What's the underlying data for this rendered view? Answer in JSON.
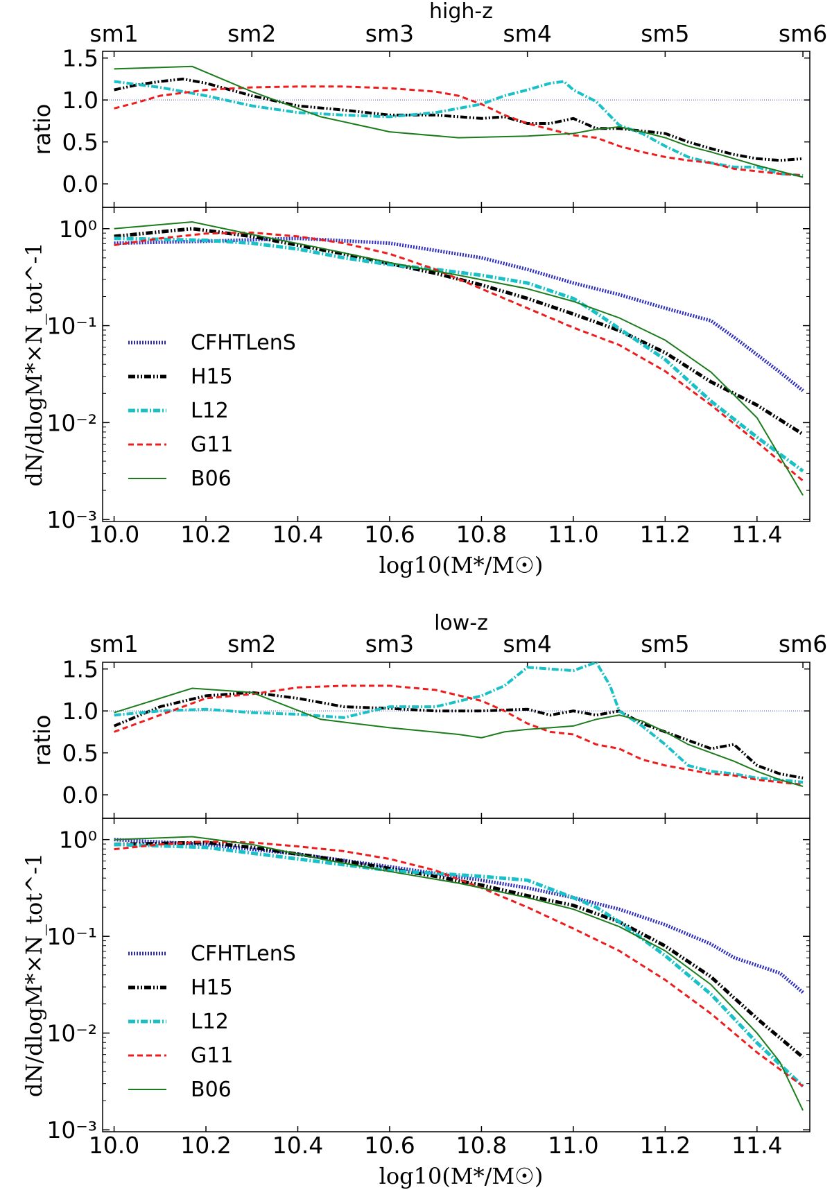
{
  "figure": {
    "title_axis_x": "log10(M*/M☉)",
    "colors": {
      "CFHTLenS": "#2b2bbd",
      "H15": "#000000",
      "L12": "#19c0c8",
      "G11": "#ee1c1c",
      "B06": "#1c7c1c",
      "ref": "#3b4bd0"
    },
    "legend_order": [
      "CFHTLenS",
      "H15",
      "L12",
      "G11",
      "B06"
    ]
  },
  "chart_data": [
    {
      "panel": "high-z",
      "title": "high-z",
      "top_axis": {
        "ticks": [
          "sm1",
          "sm2",
          "sm3",
          "sm4",
          "sm5",
          "sm6"
        ],
        "positions": [
          10.0,
          10.3,
          10.6,
          10.9,
          11.2,
          11.5
        ]
      },
      "ratio": {
        "type": "line",
        "ylabel": "ratio",
        "ylim": [
          -0.28,
          1.58
        ],
        "yticks": [
          0.0,
          0.5,
          1.0,
          1.5
        ],
        "yticklabels": [
          "0.0",
          "0.5",
          "1.0",
          "1.5"
        ],
        "reference_line": 1.0,
        "series": [
          {
            "name": "H15",
            "x": [
              10.0,
              10.05,
              10.1,
              10.15,
              10.2,
              10.3,
              10.4,
              10.5,
              10.6,
              10.7,
              10.8,
              10.85,
              10.9,
              10.95,
              11.0,
              11.05,
              11.1,
              11.15,
              11.2,
              11.25,
              11.3,
              11.35,
              11.4,
              11.45,
              11.5
            ],
            "y": [
              1.12,
              1.18,
              1.22,
              1.25,
              1.2,
              1.05,
              0.93,
              0.88,
              0.82,
              0.82,
              0.78,
              0.8,
              0.72,
              0.72,
              0.78,
              0.66,
              0.66,
              0.63,
              0.6,
              0.5,
              0.42,
              0.35,
              0.3,
              0.28,
              0.3
            ]
          },
          {
            "name": "L12",
            "x": [
              10.0,
              10.1,
              10.2,
              10.3,
              10.4,
              10.5,
              10.6,
              10.7,
              10.8,
              10.85,
              10.9,
              10.95,
              10.98,
              11.0,
              11.05,
              11.1,
              11.15,
              11.2,
              11.25,
              11.3,
              11.35,
              11.4,
              11.45,
              11.5
            ],
            "y": [
              1.22,
              1.15,
              1.05,
              0.93,
              0.85,
              0.82,
              0.8,
              0.85,
              0.95,
              1.05,
              1.12,
              1.2,
              1.22,
              1.12,
              0.98,
              0.7,
              0.6,
              0.45,
              0.32,
              0.25,
              0.2,
              0.2,
              0.12,
              0.1
            ]
          },
          {
            "name": "G11",
            "x": [
              10.0,
              10.05,
              10.1,
              10.2,
              10.3,
              10.4,
              10.5,
              10.6,
              10.7,
              10.75,
              10.8,
              10.85,
              10.9,
              10.95,
              11.0,
              11.05,
              11.1,
              11.15,
              11.2,
              11.25,
              11.3,
              11.35,
              11.4,
              11.45,
              11.5
            ],
            "y": [
              0.9,
              0.97,
              1.05,
              1.12,
              1.15,
              1.16,
              1.16,
              1.14,
              1.1,
              1.05,
              0.95,
              0.82,
              0.72,
              0.65,
              0.58,
              0.55,
              0.45,
              0.38,
              0.32,
              0.28,
              0.25,
              0.18,
              0.15,
              0.12,
              0.1
            ]
          },
          {
            "name": "B06",
            "x": [
              10.0,
              10.17,
              10.3,
              10.45,
              10.6,
              10.75,
              10.9,
              11.0,
              11.05,
              11.1,
              11.15,
              11.2,
              11.25,
              11.3,
              11.35,
              11.4,
              11.45,
              11.5
            ],
            "y": [
              1.37,
              1.4,
              1.1,
              0.8,
              0.62,
              0.55,
              0.57,
              0.6,
              0.65,
              0.68,
              0.62,
              0.55,
              0.45,
              0.38,
              0.3,
              0.22,
              0.15,
              0.08
            ]
          }
        ]
      },
      "dist": {
        "type": "line",
        "scale": "log",
        "ylabel": "dN/dlogM*×N_tot^-1",
        "ylim_exp": [
          -3.02,
          0.22
        ],
        "yticks_exp": [
          0,
          -1,
          -2,
          -3
        ],
        "yticklabels": [
          "10⁰",
          "10⁻¹",
          "10⁻²",
          "10⁻³"
        ],
        "xlabel": "log10(M*/M☉)",
        "xticks": [
          "10.0",
          "10.2",
          "10.4",
          "10.6",
          "10.8",
          "11.0",
          "11.2",
          "11.4"
        ],
        "xtick_values": [
          10.0,
          10.2,
          10.4,
          10.6,
          10.8,
          11.0,
          11.2,
          11.4
        ],
        "xlim": [
          9.975,
          11.515
        ],
        "legend": [
          "CFHTLenS",
          "H15",
          "L12",
          "G11",
          "B06"
        ],
        "series": [
          {
            "name": "CFHTLenS",
            "x": [
              10.0,
              10.2,
              10.4,
              10.6,
              10.8,
              10.9,
              11.0,
              11.1,
              11.2,
              11.3,
              11.35,
              11.4,
              11.45,
              11.5
            ],
            "y_log": [
              -0.15,
              -0.13,
              -0.1,
              -0.15,
              -0.3,
              -0.42,
              -0.56,
              -0.68,
              -0.82,
              -0.95,
              -1.12,
              -1.3,
              -1.48,
              -1.67
            ]
          },
          {
            "name": "H15",
            "x": [
              10.0,
              10.17,
              10.3,
              10.4,
              10.5,
              10.6,
              10.7,
              10.8,
              10.9,
              11.0,
              11.1,
              11.2,
              11.3,
              11.4,
              11.5
            ],
            "y_log": [
              -0.08,
              0.0,
              -0.08,
              -0.17,
              -0.26,
              -0.36,
              -0.46,
              -0.58,
              -0.72,
              -0.88,
              -1.05,
              -1.28,
              -1.58,
              -1.82,
              -2.12
            ]
          },
          {
            "name": "L12",
            "x": [
              10.0,
              10.2,
              10.3,
              10.4,
              10.5,
              10.6,
              10.7,
              10.8,
              10.9,
              11.0,
              11.05,
              11.1,
              11.2,
              11.3,
              11.4,
              11.5
            ],
            "y_log": [
              -0.1,
              -0.12,
              -0.15,
              -0.21,
              -0.3,
              -0.37,
              -0.42,
              -0.48,
              -0.56,
              -0.72,
              -0.87,
              -1.03,
              -1.35,
              -1.78,
              -2.15,
              -2.5
            ]
          },
          {
            "name": "G11",
            "x": [
              10.0,
              10.1,
              10.2,
              10.3,
              10.4,
              10.5,
              10.6,
              10.7,
              10.8,
              10.9,
              11.0,
              11.1,
              11.2,
              11.3,
              11.4,
              11.5
            ],
            "y_log": [
              -0.17,
              -0.1,
              -0.05,
              -0.04,
              -0.08,
              -0.15,
              -0.26,
              -0.42,
              -0.62,
              -0.82,
              -1.02,
              -1.2,
              -1.47,
              -1.82,
              -2.2,
              -2.6
            ]
          },
          {
            "name": "B06",
            "x": [
              10.0,
              10.17,
              10.3,
              10.45,
              10.6,
              10.75,
              10.9,
              11.0,
              11.1,
              11.2,
              11.3,
              11.4,
              11.45,
              11.5
            ],
            "y_log": [
              0.0,
              0.07,
              -0.06,
              -0.2,
              -0.35,
              -0.48,
              -0.62,
              -0.75,
              -0.92,
              -1.15,
              -1.48,
              -1.95,
              -2.35,
              -2.75
            ]
          }
        ]
      }
    },
    {
      "panel": "low-z",
      "title": "low-z",
      "top_axis": {
        "ticks": [
          "sm1",
          "sm2",
          "sm3",
          "sm4",
          "sm5",
          "sm6"
        ],
        "positions": [
          10.0,
          10.3,
          10.6,
          10.9,
          11.2,
          11.5
        ]
      },
      "ratio": {
        "type": "line",
        "ylabel": "ratio",
        "ylim": [
          -0.28,
          1.58
        ],
        "yticks": [
          0.0,
          0.5,
          1.0,
          1.5
        ],
        "yticklabels": [
          "0.0",
          "0.5",
          "1.0",
          "1.5"
        ],
        "reference_line": 1.0,
        "series": [
          {
            "name": "H15",
            "x": [
              10.0,
              10.1,
              10.2,
              10.3,
              10.4,
              10.5,
              10.6,
              10.7,
              10.8,
              10.9,
              10.95,
              11.0,
              11.05,
              11.1,
              11.15,
              11.2,
              11.25,
              11.3,
              11.35,
              11.4,
              11.45,
              11.5
            ],
            "y": [
              0.82,
              1.05,
              1.18,
              1.22,
              1.15,
              1.05,
              1.03,
              1.0,
              1.0,
              1.02,
              0.95,
              1.0,
              0.95,
              1.0,
              0.85,
              0.75,
              0.65,
              0.55,
              0.6,
              0.35,
              0.25,
              0.2
            ]
          },
          {
            "name": "L12",
            "x": [
              10.0,
              10.1,
              10.2,
              10.3,
              10.4,
              10.5,
              10.6,
              10.7,
              10.8,
              10.85,
              10.9,
              10.95,
              11.0,
              11.05,
              11.08,
              11.1,
              11.15,
              11.2,
              11.25,
              11.3,
              11.35,
              11.4,
              11.45,
              11.5
            ],
            "y": [
              0.95,
              1.0,
              1.02,
              0.98,
              0.96,
              0.92,
              1.05,
              1.05,
              1.18,
              1.3,
              1.52,
              1.5,
              1.48,
              1.58,
              1.3,
              1.0,
              0.82,
              0.6,
              0.35,
              0.28,
              0.25,
              0.2,
              0.18,
              0.15
            ]
          },
          {
            "name": "G11",
            "x": [
              10.0,
              10.1,
              10.2,
              10.3,
              10.4,
              10.5,
              10.6,
              10.7,
              10.8,
              10.85,
              10.9,
              10.95,
              11.0,
              11.05,
              11.1,
              11.15,
              11.2,
              11.25,
              11.3,
              11.35,
              11.4,
              11.45,
              11.5
            ],
            "y": [
              0.75,
              0.95,
              1.15,
              1.2,
              1.28,
              1.3,
              1.3,
              1.25,
              1.12,
              1.0,
              0.85,
              0.75,
              0.72,
              0.6,
              0.55,
              0.42,
              0.35,
              0.3,
              0.25,
              0.23,
              0.18,
              0.15,
              0.12
            ]
          },
          {
            "name": "B06",
            "x": [
              10.0,
              10.17,
              10.3,
              10.45,
              10.6,
              10.75,
              10.8,
              10.85,
              10.9,
              10.95,
              11.0,
              11.05,
              11.1,
              11.15,
              11.2,
              11.25,
              11.3,
              11.35,
              11.4,
              11.45,
              11.5
            ],
            "y": [
              0.98,
              1.27,
              1.22,
              0.9,
              0.8,
              0.72,
              0.68,
              0.75,
              0.78,
              0.8,
              0.82,
              0.9,
              0.95,
              0.88,
              0.75,
              0.6,
              0.5,
              0.4,
              0.28,
              0.18,
              0.1
            ]
          }
        ]
      },
      "dist": {
        "type": "line",
        "scale": "log",
        "ylabel": "dN/dlogM*×N_tot^-1",
        "ylim_exp": [
          -3.02,
          0.22
        ],
        "yticks_exp": [
          0,
          -1,
          -2,
          -3
        ],
        "yticklabels": [
          "10⁰",
          "10⁻¹",
          "10⁻²",
          "10⁻³"
        ],
        "xlabel": "log10(M*/M☉)",
        "xticks": [
          "10.0",
          "10.2",
          "10.4",
          "10.6",
          "10.8",
          "11.0",
          "11.2",
          "11.4"
        ],
        "xtick_values": [
          10.0,
          10.2,
          10.4,
          10.6,
          10.8,
          11.0,
          11.2,
          11.4
        ],
        "xlim": [
          9.975,
          11.515
        ],
        "legend": [
          "CFHTLenS",
          "H15",
          "L12",
          "G11",
          "B06"
        ],
        "series": [
          {
            "name": "CFHTLenS",
            "x": [
              10.0,
              10.2,
              10.4,
              10.6,
              10.8,
              10.9,
              11.0,
              11.1,
              11.2,
              11.3,
              11.35,
              11.4,
              11.45,
              11.5
            ],
            "y_log": [
              0.0,
              -0.05,
              -0.15,
              -0.28,
              -0.42,
              -0.5,
              -0.6,
              -0.72,
              -0.88,
              -1.08,
              -1.22,
              -1.3,
              -1.38,
              -1.58
            ]
          },
          {
            "name": "H15",
            "x": [
              10.0,
              10.2,
              10.3,
              10.4,
              10.5,
              10.6,
              10.7,
              10.8,
              10.9,
              11.0,
              11.1,
              11.2,
              11.3,
              11.4,
              11.5
            ],
            "y_log": [
              -0.05,
              -0.03,
              -0.08,
              -0.15,
              -0.22,
              -0.3,
              -0.38,
              -0.47,
              -0.58,
              -0.68,
              -0.85,
              -1.1,
              -1.42,
              -1.85,
              -2.25
            ]
          },
          {
            "name": "L12",
            "x": [
              10.0,
              10.2,
              10.4,
              10.6,
              10.8,
              10.9,
              11.0,
              11.05,
              11.1,
              11.2,
              11.3,
              11.4,
              11.5
            ],
            "y_log": [
              -0.05,
              -0.08,
              -0.2,
              -0.32,
              -0.38,
              -0.42,
              -0.6,
              -0.7,
              -0.85,
              -1.2,
              -1.6,
              -2.1,
              -2.55
            ]
          },
          {
            "name": "G11",
            "x": [
              10.0,
              10.1,
              10.2,
              10.3,
              10.4,
              10.5,
              10.6,
              10.7,
              10.8,
              10.9,
              11.0,
              11.1,
              11.2,
              11.3,
              11.4,
              11.5
            ],
            "y_log": [
              -0.1,
              -0.05,
              -0.02,
              -0.03,
              -0.07,
              -0.12,
              -0.2,
              -0.32,
              -0.5,
              -0.7,
              -0.92,
              -1.15,
              -1.45,
              -1.8,
              -2.2,
              -2.55
            ]
          },
          {
            "name": "B06",
            "x": [
              10.0,
              10.17,
              10.3,
              10.45,
              10.6,
              10.75,
              10.9,
              11.0,
              11.1,
              11.2,
              11.3,
              11.4,
              11.45,
              11.5
            ],
            "y_log": [
              0.0,
              0.03,
              -0.05,
              -0.2,
              -0.33,
              -0.45,
              -0.6,
              -0.72,
              -0.9,
              -1.15,
              -1.5,
              -2.0,
              -2.3,
              -2.8
            ]
          }
        ]
      }
    }
  ]
}
